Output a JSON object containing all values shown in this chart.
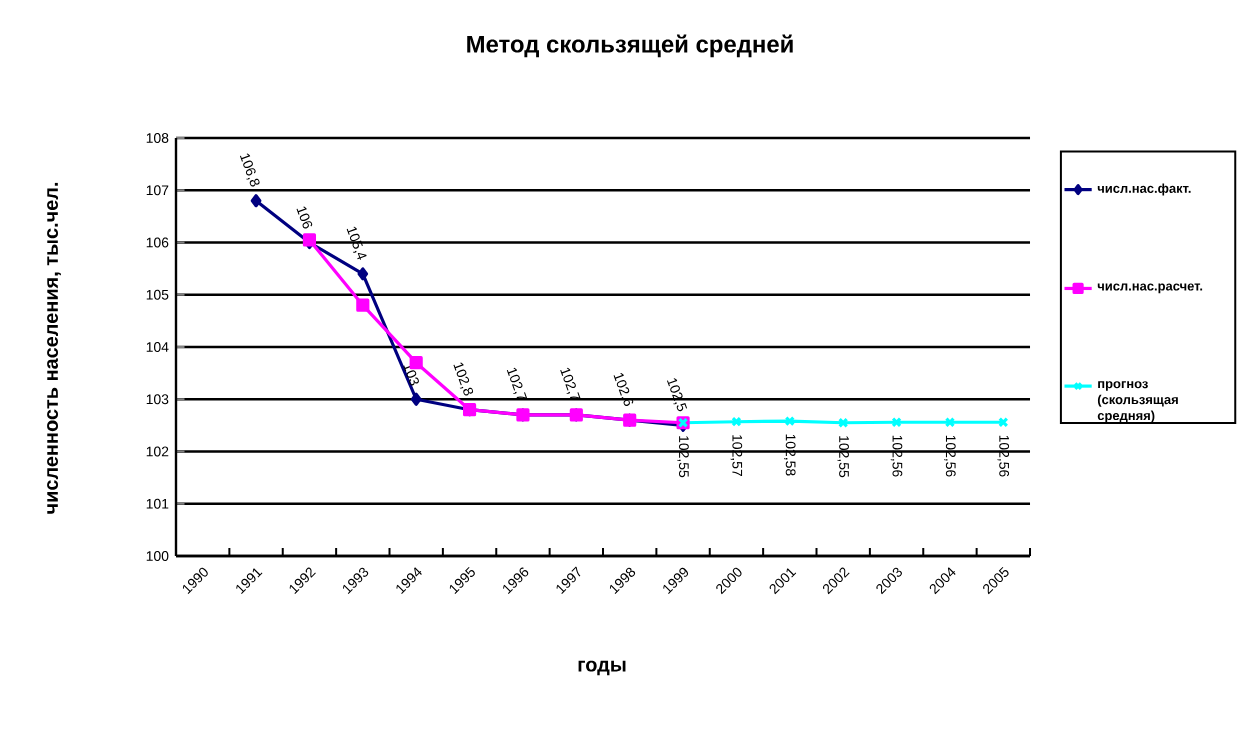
{
  "chart_data": {
    "type": "line",
    "title": "Метод скользящей средней",
    "xlabel": "годы",
    "ylabel": "численность населения, тыс.чел.",
    "categories": [
      "1990",
      "1991",
      "1992",
      "1993",
      "1994",
      "1995",
      "1996",
      "1997",
      "1998",
      "1999",
      "2000",
      "2001",
      "2002",
      "2003",
      "2004",
      "2005"
    ],
    "series": [
      {
        "name": "числ.нас.факт.",
        "color": "#000080",
        "marker": "diamond",
        "values": [
          null,
          106.8,
          106,
          105.4,
          103,
          102.8,
          102.7,
          102.7,
          102.6,
          102.5,
          null,
          null,
          null,
          null,
          null,
          null
        ],
        "value_labels": [
          null,
          "106,8",
          "106",
          "105,4",
          "103",
          "102,8",
          "102,7",
          "102,7",
          "102,6",
          "102,5",
          null,
          null,
          null,
          null,
          null,
          null
        ]
      },
      {
        "name": "числ.нас.расчет.",
        "color": "#ff00ff",
        "marker": "square",
        "values": [
          null,
          null,
          106.05,
          104.8,
          103.7,
          102.8,
          102.7,
          102.7,
          102.6,
          102.55,
          null,
          null,
          null,
          null,
          null,
          null
        ]
      },
      {
        "name": "прогноз (скользящая средняя)",
        "color": "#00ffff",
        "marker": "cross",
        "values": [
          null,
          null,
          null,
          null,
          null,
          null,
          null,
          null,
          null,
          102.55,
          102.57,
          102.58,
          102.55,
          102.56,
          102.56,
          102.56
        ],
        "value_labels": [
          null,
          null,
          null,
          null,
          null,
          null,
          null,
          null,
          null,
          "102,55",
          "102,57",
          "102,58",
          "102,55",
          "102,56",
          "102,56",
          "102,56"
        ]
      }
    ],
    "ylim": [
      100,
      108
    ],
    "yticks": [
      100,
      101,
      102,
      103,
      104,
      105,
      106,
      107,
      108
    ],
    "grid": "y",
    "legend": "right"
  }
}
